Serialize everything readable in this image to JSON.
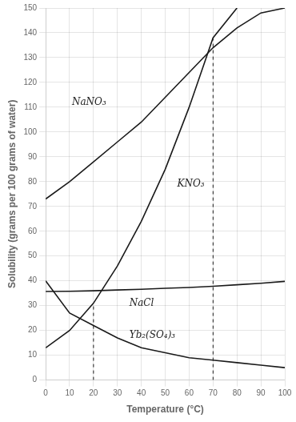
{
  "chart_data": {
    "type": "line",
    "xlabel": "Temperature (°C)",
    "ylabel": "Solubility (grams per 100 grams of water)",
    "xlim": [
      0,
      100
    ],
    "ylim": [
      0,
      150
    ],
    "xticks": [
      0,
      10,
      20,
      30,
      40,
      50,
      60,
      70,
      80,
      90,
      100
    ],
    "yticks": [
      0,
      10,
      20,
      30,
      40,
      50,
      60,
      70,
      80,
      90,
      100,
      110,
      120,
      130,
      140,
      150
    ],
    "grid": true,
    "series": [
      {
        "color": "#1a1a1a",
        "x": [
          0,
          10,
          20,
          30,
          40,
          50,
          60,
          70,
          80
        ],
        "values": [
          13,
          20,
          31,
          46,
          64,
          85,
          110,
          138,
          150
        ]
      },
      {
        "color": "#1a1a1a",
        "x": [
          0,
          10,
          20,
          30,
          40,
          50,
          60,
          70,
          80,
          90,
          100
        ],
        "values": [
          73,
          80,
          88,
          96,
          104,
          114,
          124,
          134,
          142,
          148,
          150
        ]
      },
      {
        "color": "#1a1a1a",
        "x": [
          0,
          10,
          20,
          30,
          40,
          50,
          60,
          70,
          80,
          90,
          100
        ],
        "values": [
          35.7,
          35.8,
          36.0,
          36.3,
          36.6,
          37.0,
          37.3,
          37.8,
          38.4,
          39.0,
          39.8
        ]
      },
      {
        "color": "#1a1a1a",
        "x": [
          0,
          10,
          20,
          30,
          40,
          50,
          60,
          70,
          80,
          90,
          100
        ],
        "values": [
          40,
          27,
          22,
          17,
          13,
          11,
          9,
          8,
          7,
          6,
          5
        ]
      },
      {
        "color": "#1a1a1a",
        "line_style": "dashed",
        "x": [
          20,
          20
        ],
        "values": [
          0,
          31
        ]
      },
      {
        "color": "#1a1a1a",
        "line_style": "dashed",
        "x": [
          70,
          70
        ],
        "values": [
          0,
          138
        ]
      }
    ],
    "annotations": [
      {
        "text": "KNO₃",
        "x": 55,
        "y": 78
      },
      {
        "text": "NaNO₃",
        "x": 11,
        "y": 111
      },
      {
        "text": "NaCl",
        "x": 35,
        "y": 30
      },
      {
        "text": "Yb₂(SO₄)₃",
        "x": 35,
        "y": 17
      }
    ]
  }
}
